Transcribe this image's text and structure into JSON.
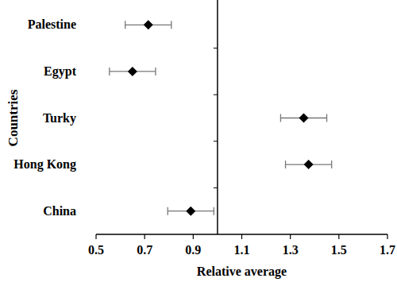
{
  "chart_data": {
    "type": "dot",
    "orientation": "horizontal",
    "xlabel": "Relative average",
    "ylabel": "Countries",
    "categories": [
      "Palestine",
      "Egypt",
      "Turky",
      "Hong Kong",
      "China"
    ],
    "values": [
      0.715,
      0.65,
      1.355,
      1.375,
      0.89
    ],
    "errors": [
      0.095,
      0.095,
      0.095,
      0.095,
      0.095
    ],
    "reference": 1,
    "xlim": [
      0.5,
      1.7
    ],
    "xticks": [
      0.5,
      0.7,
      0.9,
      1.1,
      1.3,
      1.5,
      1.7
    ],
    "color": "#000000",
    "marker": "diamond"
  }
}
